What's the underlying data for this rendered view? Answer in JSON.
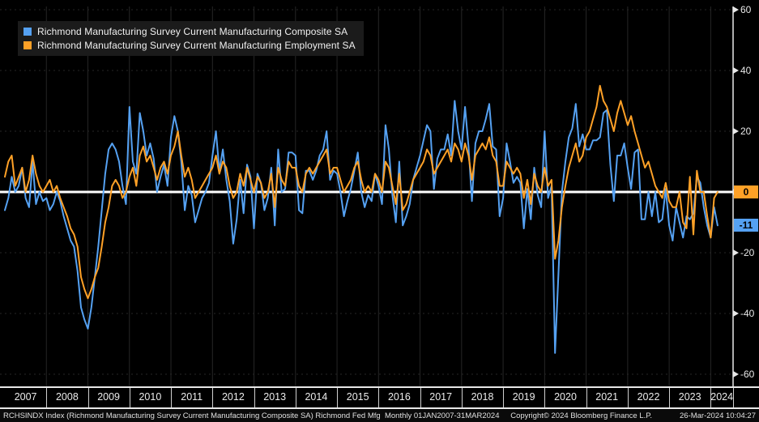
{
  "colors": {
    "background": "#000000",
    "composite_blue": "#55a1f2",
    "employment_orange": "#ffa127",
    "zero_line": "#ffffff",
    "axis": "#e8e8e8",
    "gridline": "#262626"
  },
  "legend": {
    "items": [
      {
        "label": "Richmond Manufacturing Survey Current Manufacturing Composite SA",
        "color": "#55a1f2"
      },
      {
        "label": "Richmond Manufacturing Survey Current Manufacturing Employment SA",
        "color": "#ffa127"
      }
    ]
  },
  "chart_data": {
    "type": "line",
    "frequency": "monthly",
    "start": "2007-01",
    "end": "2024-03",
    "ylim": [
      -60,
      60
    ],
    "y_ticks": [
      60,
      40,
      20,
      0,
      -20,
      -40,
      -60
    ],
    "y_tick_labels": [
      "60",
      "40",
      "20",
      "0",
      "-20",
      "-40",
      "-60"
    ],
    "x_tick_labels": [
      "2007",
      "2008",
      "2009",
      "2010",
      "2011",
      "2012",
      "2013",
      "2014",
      "2015",
      "2016",
      "2017",
      "2018",
      "2019",
      "2020",
      "2021",
      "2022",
      "2023",
      "2024"
    ],
    "zero_line": true,
    "legend_position": "top-left",
    "grid": "faint",
    "series": [
      {
        "name": "Richmond Manufacturing Survey Current Manufacturing Composite SA",
        "color": "#55a1f2",
        "last_value": -11,
        "last_label": "-11",
        "values": [
          -6,
          -2,
          5,
          0,
          2,
          8,
          -2,
          -5,
          10,
          -4,
          0,
          -3,
          -2,
          -6,
          -4,
          0,
          -3,
          -8,
          -12,
          -16,
          -18,
          -26,
          -38,
          -42,
          -45,
          -38,
          -28,
          -18,
          -6,
          6,
          14,
          16,
          14,
          10,
          2,
          -4,
          28,
          10,
          6,
          26,
          20,
          12,
          16,
          11,
          0,
          5,
          9,
          2,
          18,
          25,
          20,
          10,
          -6,
          2,
          -1,
          -10,
          -6,
          -2,
          0,
          3,
          12,
          20,
          7,
          14,
          4,
          -3,
          -17,
          -9,
          4,
          -7,
          9,
          5,
          -12,
          6,
          3,
          -6,
          -2,
          8,
          -11,
          14,
          0,
          1,
          13,
          13,
          12,
          -6,
          -7,
          7,
          7,
          4,
          7,
          12,
          14,
          20,
          4,
          7,
          6,
          0,
          -8,
          -3,
          1,
          7,
          13,
          0,
          -5,
          -1,
          -3,
          6,
          2,
          -4,
          22,
          14,
          -1,
          -10,
          10,
          -11,
          -8,
          -4,
          4,
          8,
          12,
          17,
          22,
          20,
          1,
          11,
          14,
          14,
          19,
          12,
          30,
          20,
          14,
          28,
          15,
          -3,
          16,
          20,
          20,
          24,
          29,
          15,
          14,
          -8,
          -2,
          16,
          10,
          3,
          5,
          3,
          -12,
          1,
          -9,
          8,
          -1,
          -5,
          20,
          -2,
          2,
          -53,
          -27,
          0,
          10,
          18,
          21,
          29,
          15,
          19,
          14,
          14,
          17,
          17,
          18,
          26,
          27,
          9,
          -3,
          12,
          12,
          16,
          8,
          1,
          13,
          14,
          -9,
          -9,
          0,
          -8,
          0,
          -10,
          -9,
          1,
          -11,
          -16,
          -5,
          -10,
          -15,
          -8,
          -9,
          -7,
          5,
          3,
          -5,
          -11,
          -15,
          -5,
          -11
        ]
      },
      {
        "name": "Richmond Manufacturing Survey Current Manufacturing Employment SA",
        "color": "#ffa127",
        "last_value": 0,
        "last_label": "0",
        "values": [
          5,
          10,
          12,
          2,
          5,
          8,
          0,
          4,
          12,
          6,
          2,
          0,
          2,
          4,
          0,
          2,
          -2,
          -5,
          -8,
          -12,
          -14,
          -18,
          -28,
          -32,
          -35,
          -32,
          -28,
          -25,
          -18,
          -10,
          -5,
          2,
          4,
          2,
          -2,
          0,
          5,
          8,
          2,
          12,
          15,
          10,
          12,
          8,
          4,
          8,
          10,
          6,
          12,
          15,
          20,
          12,
          5,
          8,
          4,
          -2,
          0,
          2,
          4,
          6,
          8,
          12,
          6,
          10,
          8,
          2,
          -2,
          0,
          6,
          2,
          8,
          4,
          0,
          5,
          3,
          -2,
          0,
          6,
          -5,
          8,
          4,
          2,
          10,
          8,
          8,
          2,
          0,
          6,
          8,
          6,
          8,
          10,
          12,
          14,
          6,
          8,
          8,
          4,
          0,
          2,
          4,
          8,
          10,
          4,
          0,
          2,
          0,
          6,
          4,
          0,
          10,
          8,
          2,
          -4,
          6,
          -6,
          -4,
          0,
          4,
          6,
          8,
          10,
          14,
          12,
          6,
          8,
          10,
          12,
          14,
          10,
          16,
          14,
          10,
          16,
          12,
          4,
          12,
          14,
          16,
          14,
          18,
          12,
          10,
          2,
          2,
          10,
          8,
          6,
          8,
          6,
          -2,
          4,
          -4,
          6,
          2,
          0,
          8,
          2,
          4,
          -22,
          -16,
          -5,
          2,
          8,
          12,
          16,
          10,
          12,
          18,
          20,
          24,
          28,
          35,
          30,
          28,
          24,
          20,
          26,
          30,
          26,
          22,
          25,
          20,
          16,
          12,
          8,
          10,
          6,
          2,
          0,
          -2,
          3,
          -3,
          -5,
          -5,
          0,
          -10,
          -12,
          5,
          -14,
          7,
          0,
          0,
          -8,
          -15,
          -2,
          0
        ]
      }
    ]
  },
  "footer": {
    "left": "RCHSINDX Index (Richmond Manufacturing Survey Current Manufacturing Composite SA) Richmond Fed Mfg  Monthly 01JAN2007-31MAR2024",
    "copyright": "Copyright© 2024 Bloomberg Finance L.P.",
    "datetime": "26-Mar-2024 10:04:27"
  }
}
